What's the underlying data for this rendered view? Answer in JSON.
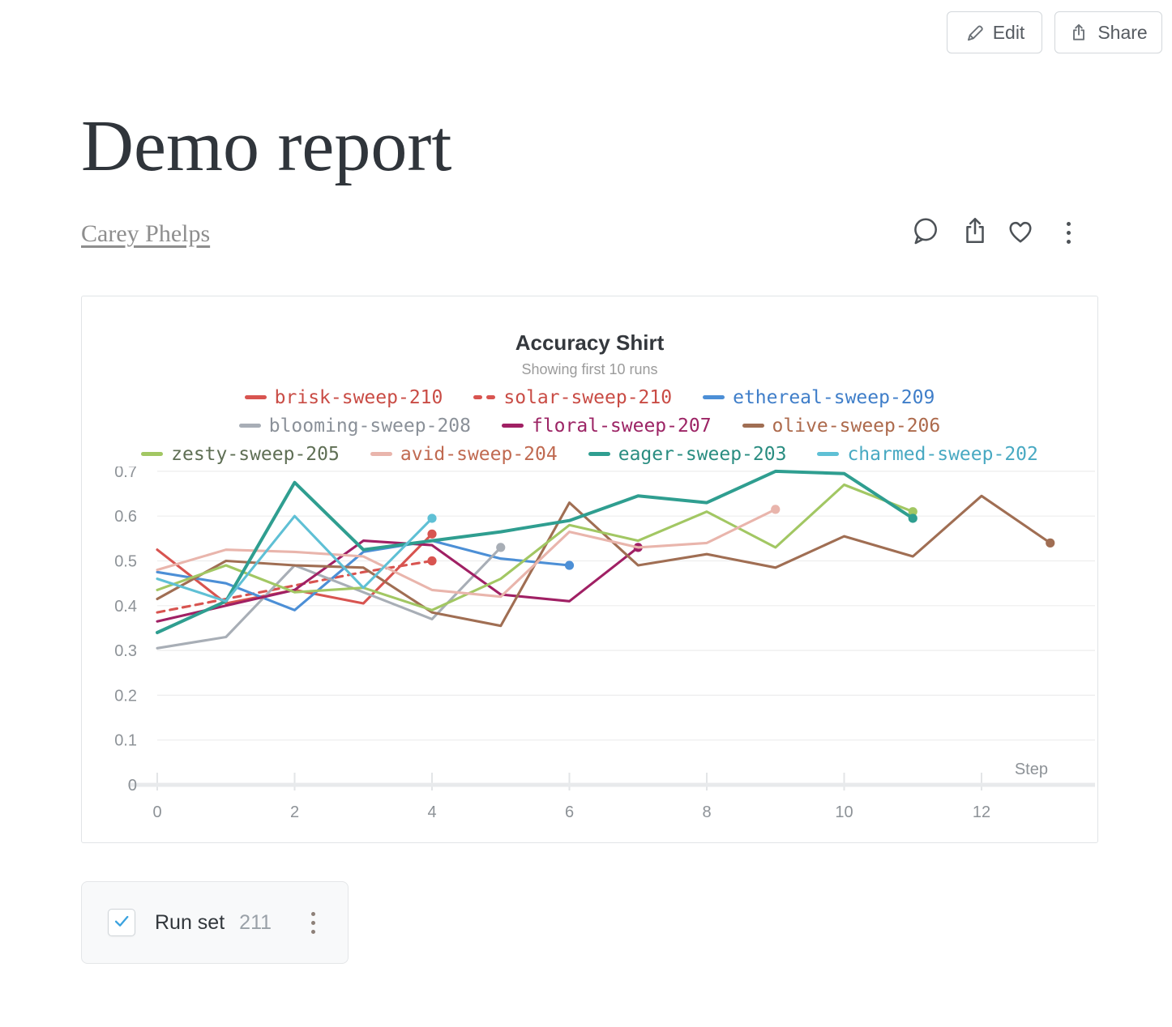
{
  "header": {
    "edit_label": "Edit",
    "share_label": "Share"
  },
  "report": {
    "title": "Demo report",
    "author": "Carey Phelps"
  },
  "actions": {
    "icons": [
      "comment-bubble",
      "export-share",
      "heart-like",
      "more-menu"
    ]
  },
  "chart_data": {
    "type": "line",
    "title": "Accuracy Shirt",
    "subtitle": "Showing first 10 runs",
    "xlabel": "Step",
    "ylabel": "",
    "xlim": [
      0,
      13.3
    ],
    "ylim": [
      0,
      0.7
    ],
    "x_ticks": [
      0,
      2,
      4,
      6,
      8,
      10,
      12
    ],
    "y_ticks": [
      0,
      0.1,
      0.2,
      0.3,
      0.4,
      0.5,
      0.6,
      0.7
    ],
    "grid": "horizontal",
    "legend_position": "top",
    "series": [
      {
        "name": "brisk-sweep-210",
        "color": "#d85450",
        "text_color": "#c94c45",
        "dashed": false,
        "x": [
          0,
          1,
          2,
          3,
          4
        ],
        "y": [
          0.525,
          0.405,
          0.435,
          0.405,
          0.56
        ]
      },
      {
        "name": "solar-sweep-210",
        "color": "#d85450",
        "text_color": "#c94c45",
        "dashed": true,
        "x": [
          0,
          1,
          2,
          3,
          4
        ],
        "y": [
          0.385,
          0.415,
          0.445,
          0.475,
          0.5
        ]
      },
      {
        "name": "ethereal-sweep-209",
        "color": "#4c8fd6",
        "text_color": "#3f7ec9",
        "dashed": false,
        "x": [
          0,
          1,
          2,
          3,
          4,
          5,
          6
        ],
        "y": [
          0.475,
          0.45,
          0.39,
          0.52,
          0.545,
          0.505,
          0.49
        ]
      },
      {
        "name": "blooming-sweep-208",
        "color": "#a8aeb6",
        "text_color": "#8b9199",
        "dashed": false,
        "x": [
          0,
          1,
          2,
          3,
          4,
          5
        ],
        "y": [
          0.305,
          0.33,
          0.49,
          0.43,
          0.37,
          0.53
        ]
      },
      {
        "name": "floral-sweep-207",
        "color": "#a02064",
        "text_color": "#9c2465",
        "dashed": false,
        "x": [
          0,
          1,
          2,
          3,
          4,
          5,
          6,
          7
        ],
        "y": [
          0.365,
          0.4,
          0.435,
          0.545,
          0.535,
          0.425,
          0.41,
          0.53
        ]
      },
      {
        "name": "olive-sweep-206",
        "color": "#a06e53",
        "text_color": "#ad6a4c",
        "dashed": false,
        "x": [
          0,
          1,
          2,
          3,
          4,
          5,
          6,
          7,
          8,
          9,
          10,
          11,
          12,
          13
        ],
        "y": [
          0.415,
          0.5,
          0.49,
          0.485,
          0.385,
          0.355,
          0.63,
          0.49,
          0.515,
          0.485,
          0.555,
          0.51,
          0.645,
          0.54
        ]
      },
      {
        "name": "zesty-sweep-205",
        "color": "#a2c763",
        "text_color": "#5f6f55",
        "dashed": false,
        "x": [
          0,
          1,
          2,
          3,
          4,
          5,
          6,
          7,
          8,
          9,
          10,
          11
        ],
        "y": [
          0.435,
          0.49,
          0.43,
          0.44,
          0.39,
          0.46,
          0.58,
          0.545,
          0.61,
          0.53,
          0.67,
          0.61
        ]
      },
      {
        "name": "avid-sweep-204",
        "color": "#e9b5ac",
        "text_color": "#c06a51",
        "dashed": false,
        "x": [
          0,
          1,
          2,
          3,
          4,
          5,
          6,
          7,
          8,
          9
        ],
        "y": [
          0.48,
          0.525,
          0.52,
          0.51,
          0.435,
          0.42,
          0.565,
          0.53,
          0.54,
          0.615
        ]
      },
      {
        "name": "eager-sweep-203",
        "color": "#2f9e90",
        "text_color": "#2a8d81",
        "dashed": false,
        "width": 4,
        "x": [
          0,
          1,
          2,
          3,
          4,
          5,
          6,
          7,
          8,
          9,
          10,
          11
        ],
        "y": [
          0.34,
          0.41,
          0.675,
          0.525,
          0.545,
          0.565,
          0.59,
          0.645,
          0.63,
          0.7,
          0.695,
          0.595
        ]
      },
      {
        "name": "charmed-sweep-202",
        "color": "#5fc0d5",
        "text_color": "#48a9c2",
        "dashed": false,
        "x": [
          0,
          1,
          2,
          3,
          4
        ],
        "y": [
          0.46,
          0.41,
          0.6,
          0.44,
          0.595
        ]
      }
    ]
  },
  "runset": {
    "label": "Run set",
    "count": "211",
    "checkbox_checked": "true",
    "checkbox_accent": "#3aa2df"
  }
}
